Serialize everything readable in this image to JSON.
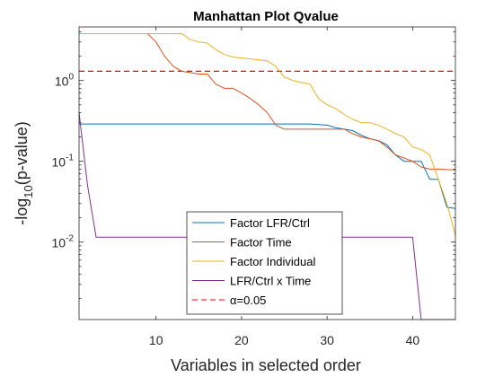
{
  "chart_data": {
    "type": "line",
    "title": "Manhattan Plot Qvalue",
    "xlabel": "Variables in selected order",
    "ylabel": {
      "prefix": "-log",
      "sub": "10",
      "suffix": "(p-value)"
    },
    "xlim": [
      1,
      45
    ],
    "ylim": [
      0.0011,
      4.6
    ],
    "yscale": "log",
    "xticks": [
      10,
      20,
      30,
      40
    ],
    "yticks": [
      {
        "value": 1,
        "base": "10",
        "exp": "0"
      },
      {
        "value": 0.1,
        "base": "10",
        "exp": "-1"
      },
      {
        "value": 0.01,
        "base": "10",
        "exp": "-2"
      }
    ],
    "threshold": {
      "value": 1.3,
      "label": "α=0.05",
      "color": "#ff0000"
    },
    "legend_position": "bottom-center",
    "series": [
      {
        "name": "Factor LFR/Ctrl",
        "color": "#0072BD",
        "x": [
          1,
          2,
          5,
          10,
          15,
          20,
          25,
          28,
          30,
          31,
          32,
          33,
          34,
          35,
          36,
          37,
          38,
          39,
          40,
          41,
          42,
          43,
          44,
          45
        ],
        "y": [
          0.29,
          0.29,
          0.29,
          0.29,
          0.29,
          0.29,
          0.29,
          0.29,
          0.28,
          0.26,
          0.25,
          0.24,
          0.21,
          0.19,
          0.18,
          0.16,
          0.12,
          0.1,
          0.1,
          0.1,
          0.06,
          0.06,
          0.027,
          0.026
        ]
      },
      {
        "name": "Factor Time",
        "color": "#D95319",
        "x": [
          1,
          5,
          9,
          10,
          11,
          12,
          13,
          14,
          15,
          16,
          17,
          18,
          19,
          20,
          21,
          22,
          23,
          24,
          25,
          26,
          27,
          28,
          30,
          32,
          33,
          34,
          35,
          36,
          37,
          38,
          39,
          40,
          41,
          42,
          43,
          44,
          45
        ],
        "y": [
          3.8,
          3.8,
          3.8,
          3.0,
          2.0,
          1.5,
          1.3,
          1.25,
          1.2,
          1.2,
          0.9,
          0.8,
          0.8,
          0.7,
          0.6,
          0.5,
          0.4,
          0.28,
          0.25,
          0.25,
          0.25,
          0.25,
          0.25,
          0.25,
          0.22,
          0.2,
          0.19,
          0.18,
          0.15,
          0.12,
          0.11,
          0.1,
          0.085,
          0.08,
          0.08,
          0.079,
          0.078
        ]
      },
      {
        "name": "Factor Individual",
        "color": "#EDB120",
        "x": [
          1,
          10,
          13,
          14,
          15,
          16,
          17,
          18,
          19,
          20,
          21,
          22,
          23,
          24,
          25,
          26,
          27,
          28,
          29,
          30,
          31,
          32,
          33,
          34,
          35,
          36,
          37,
          38,
          39,
          40,
          41,
          42,
          43,
          44,
          45
        ],
        "y": [
          3.8,
          3.8,
          3.8,
          3.2,
          3.0,
          2.9,
          2.4,
          2.1,
          1.95,
          1.9,
          1.85,
          1.8,
          1.75,
          1.5,
          1.1,
          1.0,
          0.95,
          0.9,
          0.6,
          0.5,
          0.45,
          0.38,
          0.33,
          0.3,
          0.3,
          0.28,
          0.25,
          0.22,
          0.2,
          0.15,
          0.14,
          0.12,
          0.06,
          0.03,
          0.012
        ]
      },
      {
        "name": "LFR/Ctrl x Time",
        "color": "#7E2F8E",
        "x": [
          1,
          2,
          3,
          10,
          20,
          30,
          39,
          40,
          41,
          45
        ],
        "y": [
          0.4,
          0.05,
          0.0115,
          0.0115,
          0.0115,
          0.0115,
          0.0115,
          0.0115,
          0.0011,
          0.0011
        ]
      }
    ]
  }
}
